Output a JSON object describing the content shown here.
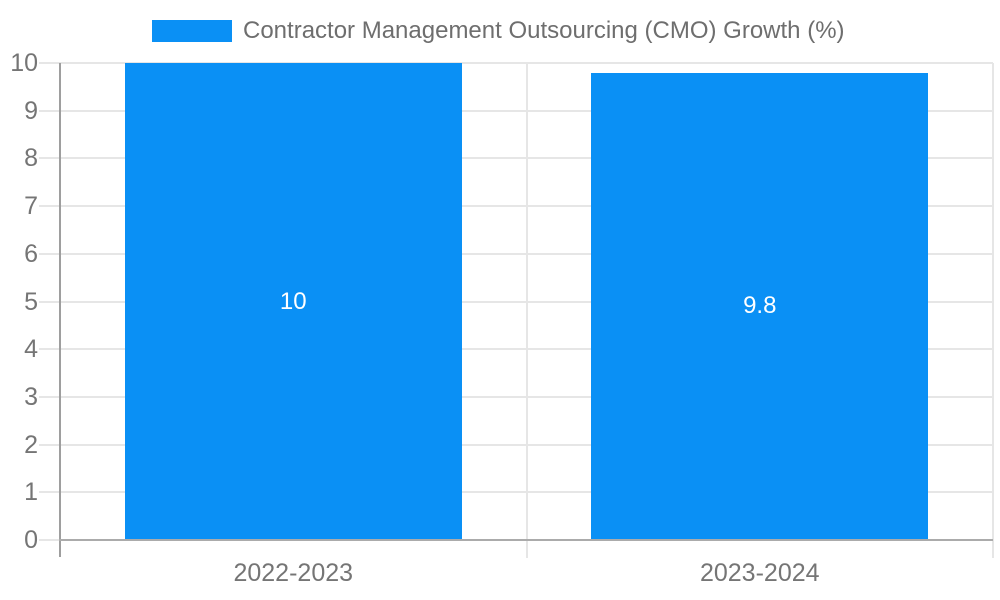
{
  "chart_data": {
    "type": "bar",
    "title": "Contractor Management Outsourcing (CMO) Growth (%)",
    "categories": [
      "2022-2023",
      "2023-2024"
    ],
    "values": [
      10,
      9.8
    ],
    "bar_labels": [
      "10",
      "9.8"
    ],
    "yticks": [
      "0",
      "1",
      "2",
      "3",
      "4",
      "5",
      "6",
      "7",
      "8",
      "9",
      "10"
    ],
    "ylim": [
      0,
      10
    ],
    "xlabel": "",
    "ylabel": "",
    "legend_position": "top",
    "grid": true,
    "colors": {
      "bar": "#0a90f5",
      "grid": "#e6e6e6",
      "axis": "#9e9e9e",
      "baseline": "#ababab",
      "tick_text": "#757575",
      "title_text": "#6e6e6e",
      "bar_label_text": "#ffffff",
      "background": "#ffffff"
    }
  }
}
